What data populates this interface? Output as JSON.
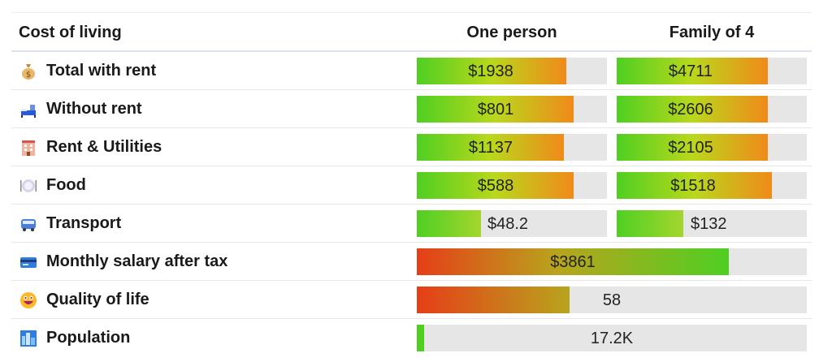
{
  "header": {
    "title": "Cost of living",
    "col1": "One person",
    "col2": "Family of 4"
  },
  "rows": [
    {
      "icon": "money-bag-icon",
      "label": "Total with rent",
      "v1": "$1938",
      "v2": "$4711"
    },
    {
      "icon": "bed-icon",
      "label": "Without rent",
      "v1": "$801",
      "v2": "$2606"
    },
    {
      "icon": "building-icon",
      "label": "Rent & Utilities",
      "v1": "$1137",
      "v2": "$2105"
    },
    {
      "icon": "plate-icon",
      "label": "Food",
      "v1": "$588",
      "v2": "$1518"
    },
    {
      "icon": "bus-icon",
      "label": "Transport",
      "v1": "$48.2",
      "v2": "$132"
    },
    {
      "icon": "credit-card-icon",
      "label": "Monthly salary after tax",
      "v1": "$3861"
    },
    {
      "icon": "smiley-icon",
      "label": "Quality of life",
      "v1": "58"
    },
    {
      "icon": "cityscape-icon",
      "label": "Population",
      "v1": "17.2K"
    }
  ],
  "colors": {
    "green": "#4fcf22",
    "yellow": "#b9d81c",
    "orange": "#f08a1a",
    "red": "#e63e18",
    "track": "#e6e6e6"
  }
}
